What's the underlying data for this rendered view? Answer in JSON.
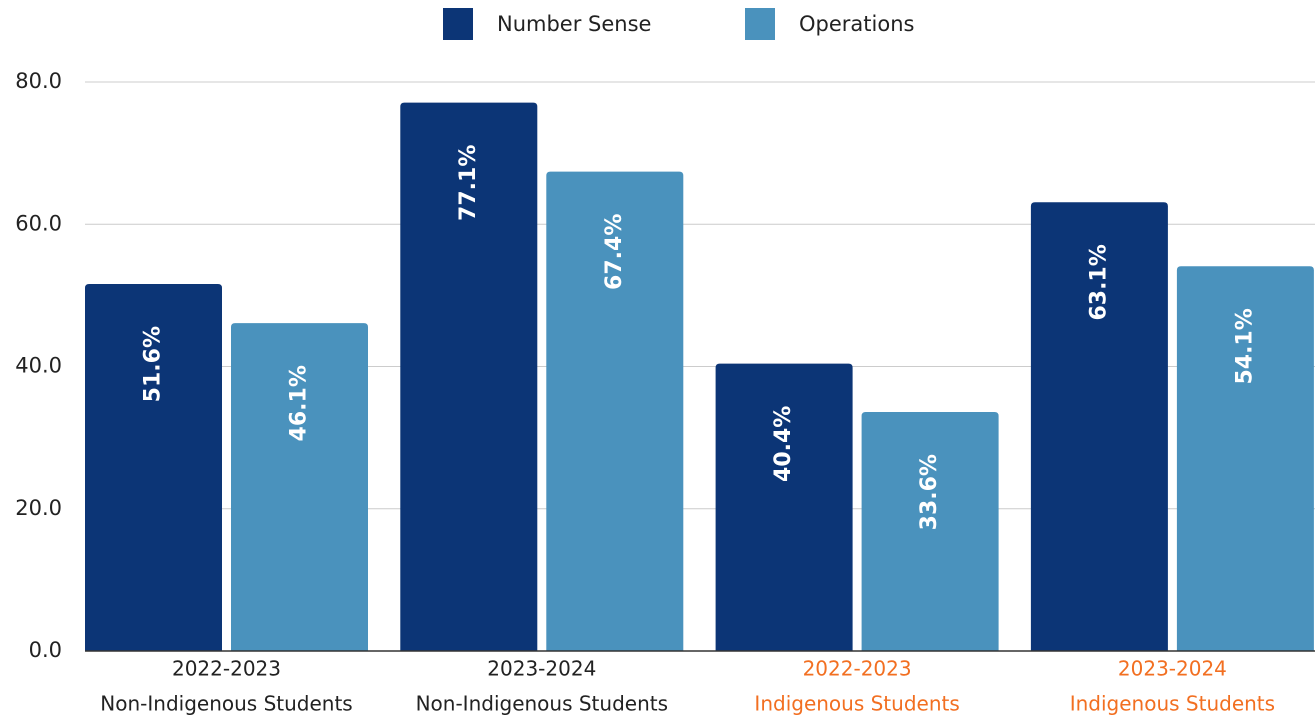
{
  "chart_data": {
    "type": "bar",
    "categories": [
      [
        "2022-2023",
        "Non-Indigenous Students"
      ],
      [
        "2023-2024",
        "Non-Indigenous Students"
      ],
      [
        "2022-2023",
        "Indigenous Students"
      ],
      [
        "2023-2024",
        "Indigenous Students"
      ]
    ],
    "category_label_colors": [
      "#222222",
      "#222222",
      "#f26f21",
      "#f26f21"
    ],
    "series": [
      {
        "name": "Number Sense",
        "color": "#0c3576",
        "values": [
          51.6,
          77.1,
          40.4,
          63.1
        ],
        "value_labels": [
          "51.6%",
          "77.1%",
          "40.4%",
          "63.1%"
        ]
      },
      {
        "name": "Operations",
        "color": "#4a92bd",
        "values": [
          46.1,
          67.4,
          33.6,
          54.1
        ],
        "value_labels": [
          "46.1%",
          "67.4%",
          "33.6%",
          "54.1%"
        ]
      }
    ],
    "ylim": [
      0,
      80
    ],
    "yticks": [
      {
        "value": 0,
        "label": "0.0"
      },
      {
        "value": 20,
        "label": "20.0"
      },
      {
        "value": 40,
        "label": "40.0"
      },
      {
        "value": 60,
        "label": "60.0"
      },
      {
        "value": 80,
        "label": "80.0"
      }
    ],
    "grid": true,
    "legend": "top"
  }
}
